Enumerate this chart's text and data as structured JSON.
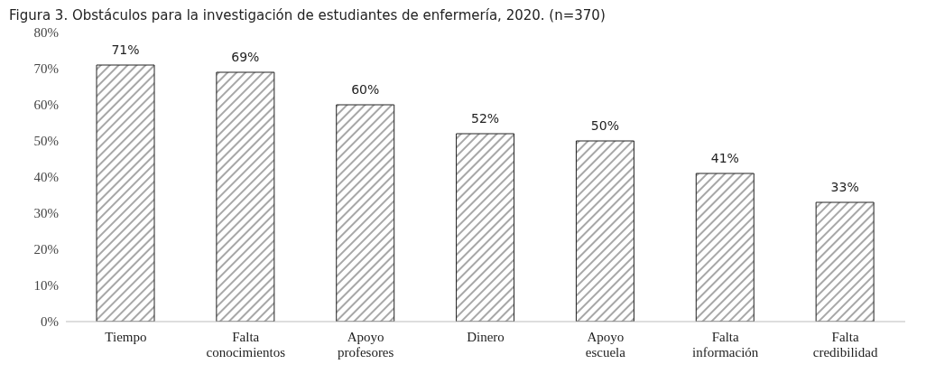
{
  "chart_data": {
    "type": "bar",
    "title": "Figura 3. Obstáculos para la investigación de estudiantes de enfermería, 2020. (n=370)",
    "categories": [
      "Tiempo",
      "Falta conocimientos",
      "Apoyo profesores",
      "Dinero",
      "Apoyo escuela",
      "Falta información",
      "Falta credibilidad"
    ],
    "values": [
      71,
      69,
      60,
      52,
      50,
      41,
      33
    ],
    "color": "#222222",
    "value_labels": [
      "71%",
      "69%",
      "60%",
      "52%",
      "50%",
      "41%",
      "33%"
    ],
    "ylim": [
      0,
      80
    ],
    "yticks": [
      {
        "value": 0,
        "label": "0%"
      },
      {
        "value": 10,
        "label": "10%"
      },
      {
        "value": 20,
        "label": "20%"
      },
      {
        "value": 30,
        "label": "30%"
      },
      {
        "value": 40,
        "label": "40%"
      },
      {
        "value": 50,
        "label": "50%"
      },
      {
        "value": 60,
        "label": "60%"
      },
      {
        "value": 70,
        "label": "70%"
      },
      {
        "value": 80,
        "label": "80%"
      }
    ],
    "grid": false,
    "legend": false
  }
}
